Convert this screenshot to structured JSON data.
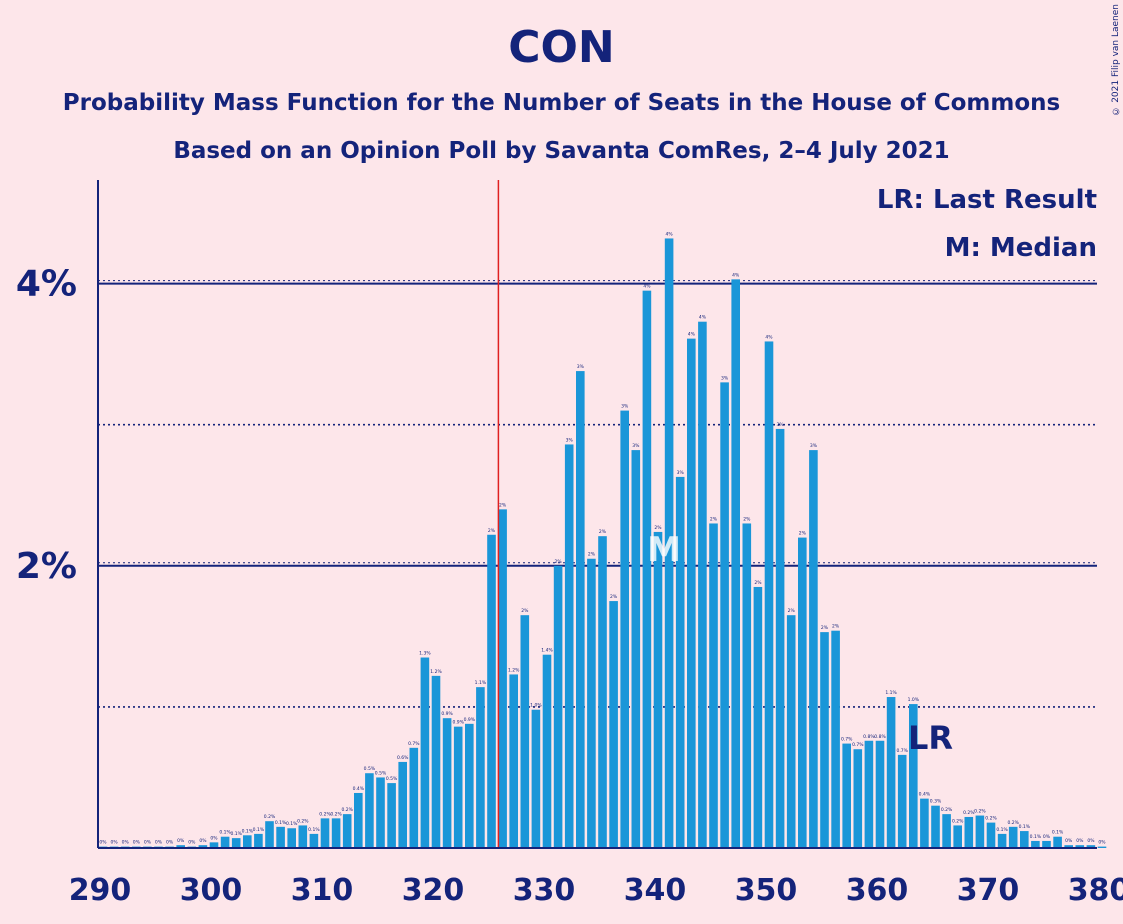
{
  "title": "CON",
  "subtitle_1": "Probability Mass Function for the Number of Seats in the House of Commons",
  "subtitle_2": "Based on an Opinion Poll by Savanta ComRes, 2–4 July 2021",
  "copyright": "© 2021 Filip van Laenen",
  "legend": {
    "lr": "LR: Last Result",
    "m": "M: Median"
  },
  "markers": {
    "median_label": "M",
    "last_result_label": "LR"
  },
  "colors": {
    "bar": "#1a96d8",
    "axis": "#14237a",
    "last_result_line": "#e02020",
    "background": "#fde6ea"
  },
  "chart_data": {
    "type": "bar",
    "x": [
      290,
      291,
      292,
      293,
      294,
      295,
      296,
      297,
      298,
      299,
      300,
      301,
      302,
      303,
      304,
      305,
      306,
      307,
      308,
      309,
      310,
      311,
      312,
      313,
      314,
      315,
      316,
      317,
      318,
      319,
      320,
      321,
      322,
      323,
      324,
      325,
      326,
      327,
      328,
      329,
      330,
      331,
      332,
      333,
      334,
      335,
      336,
      337,
      338,
      339,
      340,
      341,
      342,
      343,
      344,
      345,
      346,
      347,
      348,
      349,
      350,
      351,
      352,
      353,
      354,
      355,
      356,
      357,
      358,
      359,
      360,
      361,
      362,
      363,
      364,
      365,
      366,
      367,
      368,
      369,
      370,
      371,
      372,
      373,
      374,
      375,
      376,
      377,
      378,
      379,
      380
    ],
    "values": [
      0.01,
      0.01,
      0.01,
      0.01,
      0.01,
      0.01,
      0.01,
      0.02,
      0.01,
      0.02,
      0.04,
      0.08,
      0.07,
      0.09,
      0.1,
      0.19,
      0.15,
      0.14,
      0.16,
      0.1,
      0.21,
      0.21,
      0.24,
      0.39,
      0.53,
      0.5,
      0.46,
      0.61,
      0.71,
      1.35,
      1.22,
      0.92,
      0.86,
      0.88,
      1.14,
      2.22,
      2.4,
      1.23,
      1.65,
      0.98,
      1.37,
      2.0,
      2.86,
      3.38,
      2.05,
      2.21,
      1.75,
      3.1,
      2.82,
      3.95,
      2.24,
      4.32,
      2.63,
      3.61,
      3.73,
      2.3,
      3.3,
      4.03,
      2.3,
      1.85,
      3.59,
      2.97,
      1.65,
      2.2,
      2.82,
      1.53,
      1.54,
      0.74,
      0.7,
      0.76,
      0.76,
      1.07,
      0.66,
      1.02,
      0.35,
      0.3,
      0.24,
      0.16,
      0.22,
      0.23,
      0.18,
      0.1,
      0.15,
      0.12,
      0.05,
      0.05,
      0.08,
      0.02,
      0.02,
      0.02,
      0.01
    ],
    "data_labels": [
      "0%",
      "0%",
      "0%",
      "0%",
      "0%",
      "0%",
      "0%",
      "0%",
      "0%",
      "0%",
      "0%",
      "0.1%",
      "0.1%",
      "0.1%",
      "0.1%",
      "0.2%",
      "0.1%",
      "0.1%",
      "0.2%",
      "0.1%",
      "0.2%",
      "0.2%",
      "0.2%",
      "0.4%",
      "0.5%",
      "0.5%",
      "0.5%",
      "0.6%",
      "0.7%",
      "1.3%",
      "1.2%",
      "0.9%",
      "0.9%",
      "0.9%",
      "1.1%",
      "2%",
      "2%",
      "1.2%",
      "2%",
      "1.0%",
      "1.4%",
      "2%",
      "3%",
      "3%",
      "2%",
      "2%",
      "2%",
      "3%",
      "3%",
      "4%",
      "2%",
      "4%",
      "3%",
      "4%",
      "4%",
      "2%",
      "3%",
      "4%",
      "2%",
      "2%",
      "4%",
      "3%",
      "2%",
      "2%",
      "3%",
      "2%",
      "2%",
      "0.7%",
      "0.7%",
      "0.8%",
      "0.8%",
      "1.1%",
      "0.7%",
      "1.0%",
      "0.4%",
      "0.3%",
      "0.2%",
      "0.2%",
      "0.2%",
      "0.2%",
      "0.2%",
      "0.1%",
      "0.2%",
      "0.1%",
      "0.1%",
      "0%",
      "0.1%",
      "0%",
      "0%",
      "0%",
      "0%"
    ],
    "xlim": [
      290,
      380
    ],
    "ylim": [
      0,
      4.7
    ],
    "x_ticks": [
      290,
      300,
      310,
      320,
      330,
      340,
      350,
      360,
      370,
      380
    ],
    "y_ticks_labeled": [
      {
        "value": 2,
        "label": "2%"
      },
      {
        "value": 4,
        "label": "4%"
      }
    ],
    "y_gridlines_dotted": [
      1,
      3
    ],
    "last_result": 326,
    "median": 341
  }
}
